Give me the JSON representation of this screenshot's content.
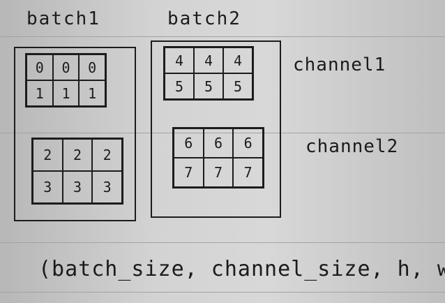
{
  "labels": {
    "batch1": "batch1",
    "batch2": "batch2",
    "channel1": "channel1",
    "channel2": "channel2",
    "formula": "(batch_size, channel_size, h, w)"
  },
  "batches": [
    {
      "channels": [
        {
          "rows": [
            [
              "0",
              "0",
              "0"
            ],
            [
              "1",
              "1",
              "1"
            ]
          ]
        },
        {
          "rows": [
            [
              "2",
              "2",
              "2"
            ],
            [
              "3",
              "3",
              "3"
            ]
          ]
        }
      ]
    },
    {
      "channels": [
        {
          "rows": [
            [
              "4",
              "4",
              "4"
            ],
            [
              "5",
              "5",
              "5"
            ]
          ]
        },
        {
          "rows": [
            [
              "6",
              "6",
              "6"
            ],
            [
              "7",
              "7",
              "7"
            ]
          ]
        }
      ]
    }
  ]
}
